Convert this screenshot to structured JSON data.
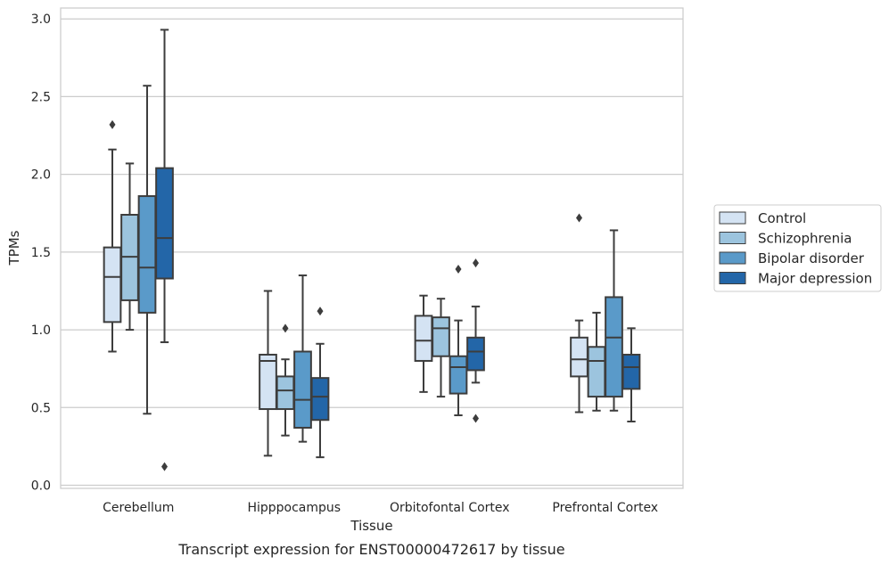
{
  "chart_data": {
    "type": "box",
    "caption": "Transcript expression for ENST00000472617 by tissue",
    "xlabel": "Tissue",
    "ylabel": "TPMs",
    "ylim": [
      -0.02,
      3.07
    ],
    "yticks": [
      "0.0",
      "0.5",
      "1.0",
      "1.5",
      "2.0",
      "2.5",
      "3.0"
    ],
    "grid": "horizontal",
    "legend_placement": "right-center",
    "categories": [
      "Cerebellum",
      "Hipppocampus",
      "Orbitofontal Cortex",
      "Prefrontal Cortex"
    ],
    "series": [
      {
        "name": "Control",
        "color": "#d4e3f3",
        "boxes": [
          {
            "whisker_low": 0.86,
            "q1": 1.05,
            "median": 1.34,
            "q3": 1.53,
            "whisker_high": 2.16,
            "outliers": [
              2.32
            ]
          },
          {
            "whisker_low": 0.19,
            "q1": 0.49,
            "median": 0.8,
            "q3": 0.84,
            "whisker_high": 1.25,
            "outliers": []
          },
          {
            "whisker_low": 0.6,
            "q1": 0.8,
            "median": 0.93,
            "q3": 1.09,
            "whisker_high": 1.22,
            "outliers": []
          },
          {
            "whisker_low": 0.47,
            "q1": 0.7,
            "median": 0.81,
            "q3": 0.95,
            "whisker_high": 1.06,
            "outliers": [
              1.72
            ]
          }
        ]
      },
      {
        "name": "Schizophrenia",
        "color": "#9cc4de",
        "boxes": [
          {
            "whisker_low": 1.0,
            "q1": 1.19,
            "median": 1.47,
            "q3": 1.74,
            "whisker_high": 2.07,
            "outliers": []
          },
          {
            "whisker_low": 0.32,
            "q1": 0.49,
            "median": 0.61,
            "q3": 0.7,
            "whisker_high": 0.81,
            "outliers": [
              1.01
            ]
          },
          {
            "whisker_low": 0.57,
            "q1": 0.83,
            "median": 1.01,
            "q3": 1.08,
            "whisker_high": 1.2,
            "outliers": []
          },
          {
            "whisker_low": 0.48,
            "q1": 0.57,
            "median": 0.8,
            "q3": 0.89,
            "whisker_high": 1.11,
            "outliers": []
          }
        ]
      },
      {
        "name": "Bipolar disorder",
        "color": "#5a9ac9",
        "boxes": [
          {
            "whisker_low": 0.46,
            "q1": 1.11,
            "median": 1.4,
            "q3": 1.86,
            "whisker_high": 2.57,
            "outliers": []
          },
          {
            "whisker_low": 0.28,
            "q1": 0.37,
            "median": 0.55,
            "q3": 0.86,
            "whisker_high": 1.35,
            "outliers": []
          },
          {
            "whisker_low": 0.45,
            "q1": 0.59,
            "median": 0.76,
            "q3": 0.83,
            "whisker_high": 1.06,
            "outliers": [
              1.39
            ]
          },
          {
            "whisker_low": 0.48,
            "q1": 0.57,
            "median": 0.95,
            "q3": 1.21,
            "whisker_high": 1.64,
            "outliers": []
          }
        ]
      },
      {
        "name": "Major depression",
        "color": "#2366a8",
        "boxes": [
          {
            "whisker_low": 0.92,
            "q1": 1.33,
            "median": 1.59,
            "q3": 2.04,
            "whisker_high": 2.93,
            "outliers": [
              0.12
            ]
          },
          {
            "whisker_low": 0.18,
            "q1": 0.42,
            "median": 0.57,
            "q3": 0.69,
            "whisker_high": 0.91,
            "outliers": [
              1.12
            ]
          },
          {
            "whisker_low": 0.66,
            "q1": 0.74,
            "median": 0.86,
            "q3": 0.95,
            "whisker_high": 1.15,
            "outliers": [
              1.43,
              0.43
            ]
          },
          {
            "whisker_low": 0.41,
            "q1": 0.62,
            "median": 0.76,
            "q3": 0.84,
            "whisker_high": 1.01,
            "outliers": []
          }
        ]
      }
    ]
  }
}
